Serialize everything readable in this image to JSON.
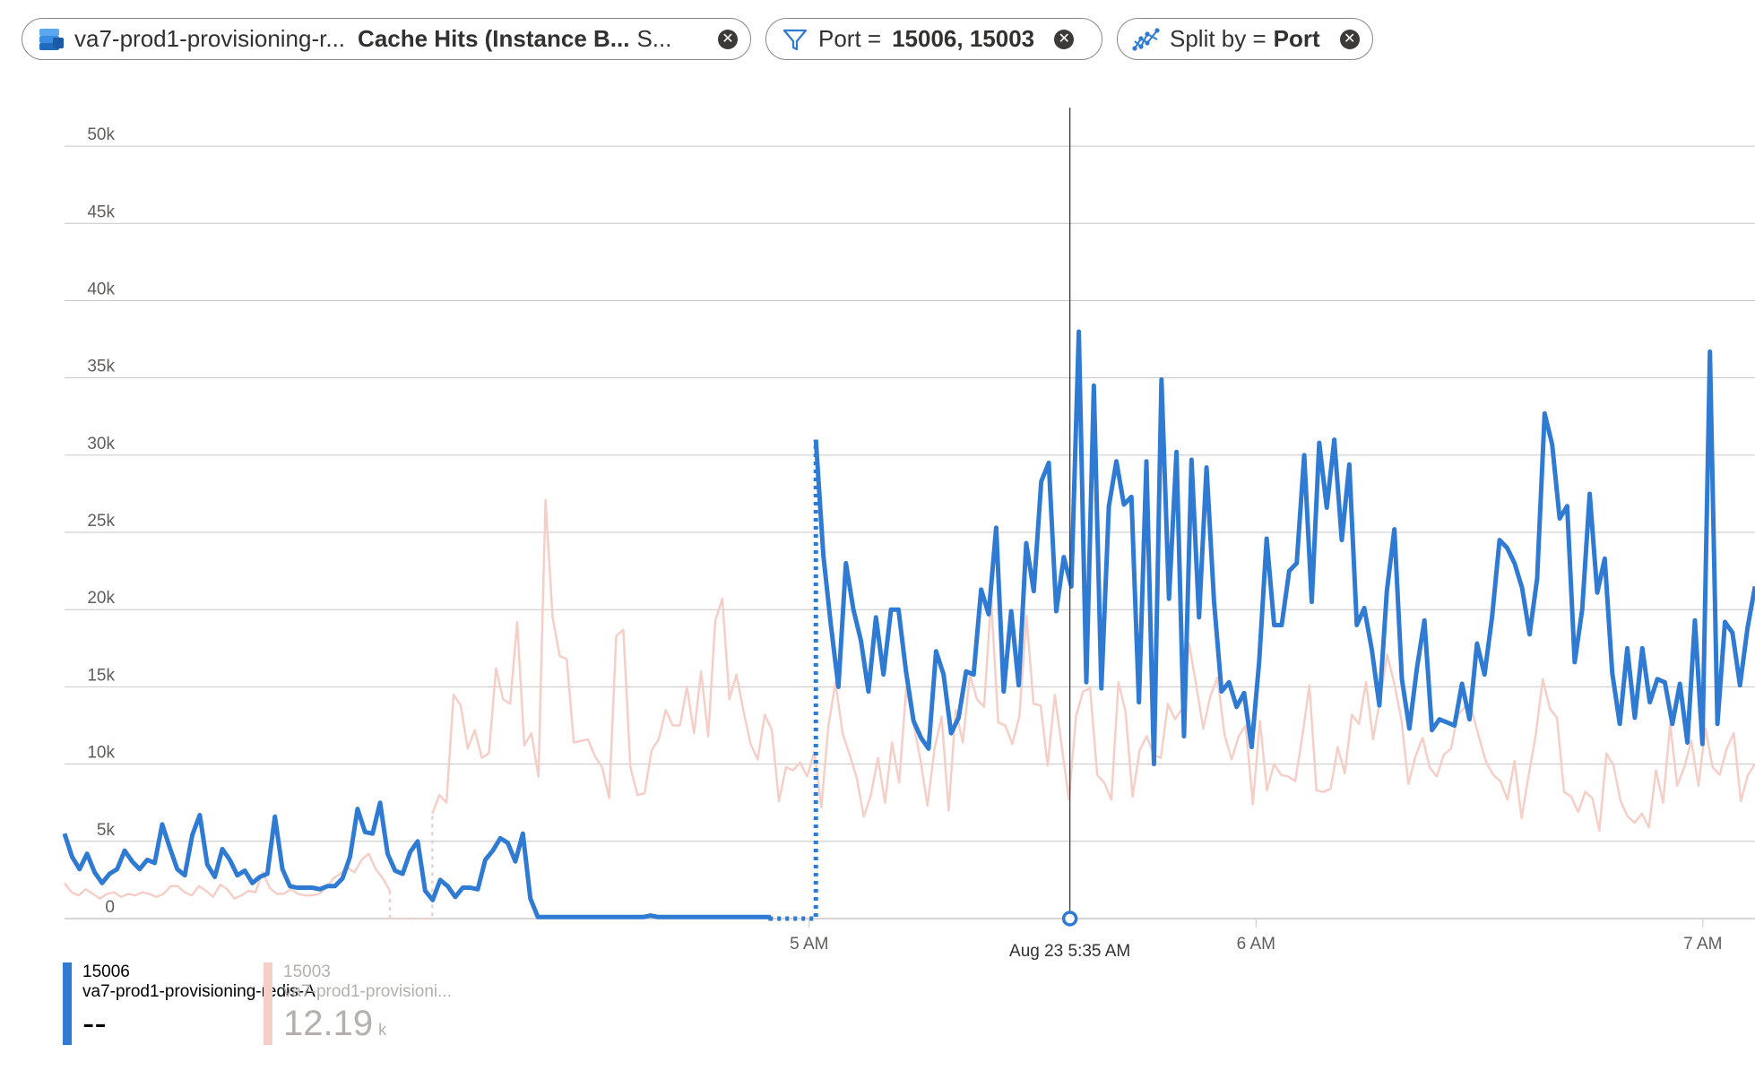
{
  "toolbar": {
    "resource_pill": {
      "resource": "va7-prod1-provisioning-r...",
      "metric": "Cache Hits (Instance B...",
      "aggregation": "S...",
      "icon": "redis-cache-icon"
    },
    "filter_pill": {
      "label": "Port =",
      "value": "15006, 15003",
      "icon": "filter-icon"
    },
    "split_pill": {
      "label": "Split by =",
      "value": "Port",
      "icon": "split-icon"
    },
    "close_glyph": "✕"
  },
  "chart_data": {
    "type": "line",
    "ylim": [
      0,
      52500
    ],
    "y_ticks": [
      {
        "value": 0,
        "label": "0"
      },
      {
        "value": 5000,
        "label": "5k"
      },
      {
        "value": 10000,
        "label": "10k"
      },
      {
        "value": 15000,
        "label": "15k"
      },
      {
        "value": 20000,
        "label": "20k"
      },
      {
        "value": 25000,
        "label": "25k"
      },
      {
        "value": 30000,
        "label": "30k"
      },
      {
        "value": 35000,
        "label": "35k"
      },
      {
        "value": 40000,
        "label": "40k"
      },
      {
        "value": 45000,
        "label": "45k"
      },
      {
        "value": 50000,
        "label": "50k"
      }
    ],
    "x_unit": "minutes after 4 AM",
    "xlim": [
      -40,
      187
    ],
    "x_ticks": [
      {
        "value": 60,
        "label": "5 AM"
      },
      {
        "value": 120,
        "label": "6 AM"
      },
      {
        "value": 180,
        "label": "7 AM"
      }
    ],
    "crosshair": {
      "value": 95,
      "label": "Aug 23 5:35 AM"
    },
    "grid": true,
    "legend_position": "bottom-left",
    "series": [
      {
        "name": "15006",
        "resource": "va7-prod1-provisioning-redis-A",
        "current_value": "--",
        "current_unit": "",
        "color": "#2f7ad3",
        "highlighted": true,
        "gap": [
          95,
          99
        ],
        "values": [
          5500,
          4000,
          3200,
          4200,
          3000,
          2300,
          2900,
          3200,
          4400,
          3700,
          3200,
          3800,
          3600,
          6100,
          4600,
          3200,
          2800,
          5400,
          6700,
          3500,
          2700,
          4500,
          3800,
          2800,
          3100,
          2300,
          2700,
          2900,
          6600,
          3200,
          2100,
          2000,
          2000,
          2000,
          1900,
          2100,
          2100,
          2600,
          4000,
          7100,
          5600,
          5500,
          7500,
          4200,
          3100,
          2900,
          4300,
          5000,
          1800,
          1200,
          2500,
          2100,
          1400,
          2000,
          2000,
          1900,
          3800,
          4400,
          5200,
          4900,
          3700,
          5500,
          1300,
          100,
          100,
          100,
          100,
          100,
          100,
          100,
          100,
          100,
          100,
          100,
          100,
          100,
          100,
          100,
          200,
          100,
          100,
          100,
          100,
          100,
          100,
          100,
          100,
          100,
          100,
          100,
          100,
          100,
          100,
          100,
          100,
          null,
          null,
          null,
          null,
          null,
          31000,
          23500,
          19000,
          15000,
          23000,
          20000,
          18000,
          14700,
          19500,
          15800,
          20000,
          20000,
          16000,
          12800,
          11700,
          11000,
          17300,
          15800,
          12000,
          13000,
          16000,
          15800,
          21300,
          19700,
          25300,
          14700,
          19900,
          15100,
          24300,
          21200,
          28300,
          29500,
          19900,
          23400,
          21500,
          38000,
          15300,
          34500,
          14900,
          26700,
          29600,
          26800,
          27300,
          14000,
          29600,
          10000,
          34900,
          20700,
          30200,
          11800,
          29700,
          19500,
          29200,
          20500,
          14700,
          15300,
          13700,
          14600,
          11100,
          16600,
          24600,
          19000,
          19000,
          22500,
          23000,
          30000,
          20500,
          30800,
          26600,
          31000,
          24500,
          29400,
          19000,
          20100,
          17400,
          13800,
          21200,
          25200,
          15500,
          12300,
          16200,
          19300,
          12200,
          12900,
          12700,
          12500,
          15200,
          12900,
          17800,
          15800,
          19500,
          24500,
          24000,
          23000,
          21400,
          18400,
          22000,
          32700,
          30700,
          25900,
          26700,
          16600,
          20000,
          27500,
          21100,
          23300,
          15900,
          12600,
          17500,
          13000,
          17500,
          14000,
          15500,
          15300,
          12600,
          15200,
          11400,
          19300,
          11300,
          36700,
          12600,
          19200,
          18500,
          15100,
          18800,
          21500
        ]
      },
      {
        "name": "15003",
        "resource": "va7-prod1-provisioni...",
        "current_value": "12.19",
        "current_unit": "k",
        "color": "#f5cfc7",
        "highlighted": false,
        "gap": [
          47,
          52
        ],
        "values": [
          2300,
          1700,
          1500,
          1900,
          1600,
          1300,
          1600,
          1700,
          1400,
          1600,
          1500,
          1700,
          1600,
          1400,
          1600,
          2100,
          2100,
          1700,
          1500,
          2100,
          1800,
          1400,
          2200,
          1900,
          1300,
          1500,
          1800,
          1700,
          3000,
          2000,
          1600,
          1600,
          1900,
          1600,
          1500,
          1500,
          1600,
          2000,
          2600,
          2900,
          3300,
          3000,
          3800,
          4200,
          3200,
          2600,
          1800,
          null,
          null,
          null,
          null,
          null,
          6800,
          8000,
          7500,
          14500,
          13800,
          11000,
          12200,
          10400,
          10700,
          16200,
          14200,
          13900,
          19200,
          11200,
          12000,
          9200,
          27100,
          19500,
          17000,
          16800,
          11400,
          11500,
          11600,
          10500,
          9800,
          7800,
          18300,
          18700,
          9800,
          8000,
          8100,
          10900,
          11600,
          13500,
          12500,
          12500,
          15000,
          12000,
          16000,
          11800,
          19300,
          20700,
          14200,
          15800,
          13400,
          11300,
          10300,
          13200,
          12200,
          7600,
          9800,
          9600,
          10100,
          9200,
          10800,
          7200,
          12500,
          15300,
          12000,
          10600,
          9100,
          6600,
          8000,
          10400,
          7500,
          11400,
          8800,
          14900,
          12700,
          10300,
          7300,
          11000,
          13100,
          7000,
          13500,
          11400,
          15800,
          14200,
          13700,
          20700,
          12700,
          12500,
          11300,
          13100,
          19600,
          13900,
          13800,
          9900,
          14500,
          11100,
          7700,
          13100,
          14700,
          14900,
          9300,
          8800,
          7700,
          15300,
          13400,
          7900,
          10900,
          11800,
          10600,
          10400,
          13900,
          12900,
          13600,
          17800,
          15100,
          12300,
          14400,
          15600,
          11900,
          10300,
          11800,
          12500,
          7400,
          12800,
          8300,
          10000,
          9300,
          9200,
          8900,
          11800,
          15100,
          8300,
          8200,
          8400,
          11100,
          9400,
          13200,
          12600,
          15300,
          11600,
          14200,
          17100,
          15200,
          12900,
          8700,
          10500,
          11700,
          9800,
          9200,
          10600,
          11000,
          13200,
          13700,
          13400,
          11700,
          10100,
          9300,
          8900,
          7700,
          10200,
          6500,
          9300,
          11900,
          15500,
          13600,
          13000,
          8200,
          7900,
          6900,
          8200,
          7800,
          5700,
          10700,
          9900,
          7600,
          6600,
          6200,
          6800,
          5900,
          9600,
          7500,
          12600,
          8600,
          9800,
          11500,
          8600,
          12300,
          9800,
          9300,
          11000,
          12000,
          7600,
          9300,
          10000
        ]
      }
    ]
  }
}
